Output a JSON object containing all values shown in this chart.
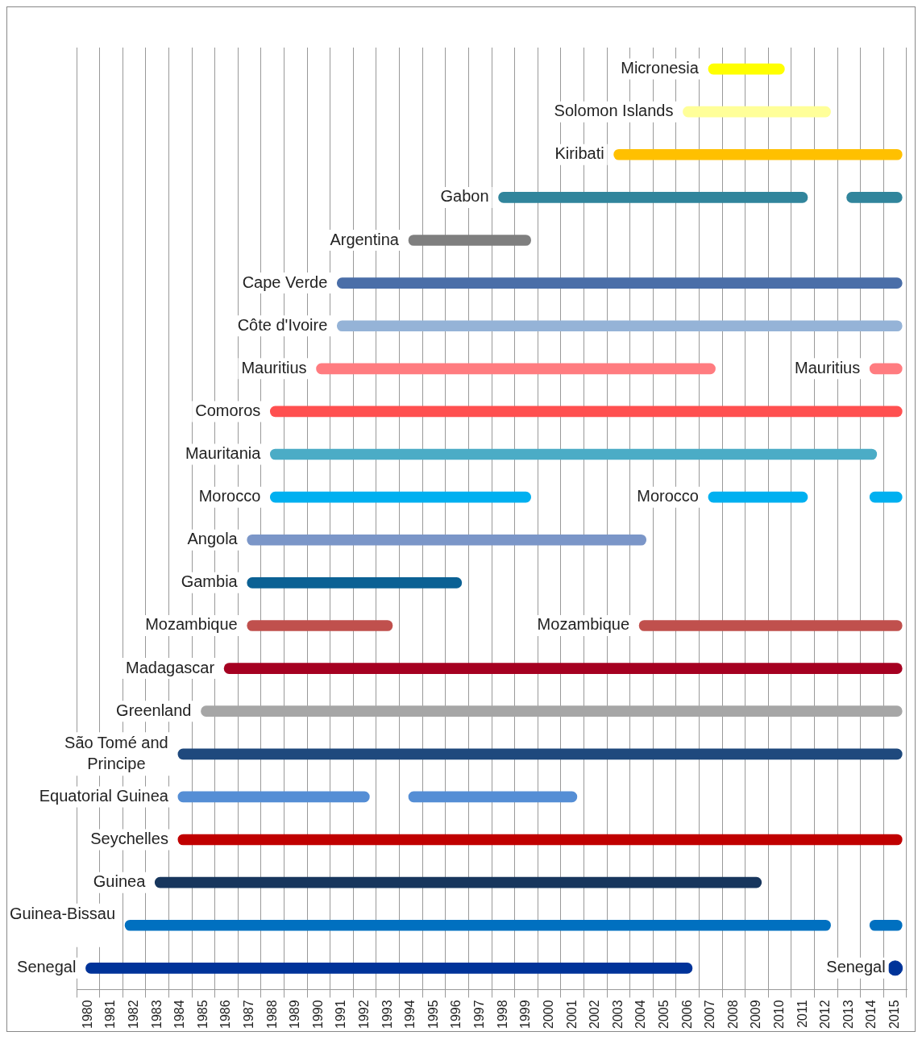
{
  "chart_data": {
    "type": "bar",
    "orientation": "horizontal",
    "categories": [
      "Micronesia",
      "Solomon Islands",
      "Kiribati",
      "Gabon",
      "Argentina",
      "Cape Verde",
      "Côte d'Ivoire",
      "Mauritius",
      "Comoros",
      "Mauritania",
      "Morocco",
      "Angola",
      "Gambia",
      "Mozambique",
      "Madagascar",
      "Greenland",
      "São Tomé and Principe",
      "Equatorial Guinea",
      "Seychelles",
      "Guinea",
      "Guinea-Bissau",
      "Senegal"
    ],
    "series": [
      {
        "base": [
          2007.4,
          2006.3,
          2003.3,
          1998.3,
          1994.4,
          1991.3,
          1991.3,
          1990.4,
          1988.4,
          1988.4,
          1988.4,
          1987.4,
          1987.4,
          1987.4,
          1986.4,
          1985.4,
          1984.4,
          1984.4,
          1984.4,
          1983.4,
          1982.1,
          1980.4
        ],
        "values": [
          3.3,
          6.4,
          12.5,
          13.4,
          5.3,
          24.5,
          24.5,
          17.3,
          27.4,
          26.3,
          11.3,
          17.3,
          9.3,
          6.3,
          29.4,
          30.4,
          31.4,
          8.3,
          31.4,
          26.3,
          30.6,
          26.3
        ],
        "colors": [
          "#ffff00",
          "#ffff99",
          "#ffc000",
          "#31859c",
          "#7f7f7f",
          "#4a6ea8",
          "#95b3d7",
          "#ff7c80",
          "#ff5050",
          "#4bacc6",
          "#00b0f0",
          "#7b96c8",
          "#0b6194",
          "#c0504d",
          "#a50021",
          "#a6a6a6",
          "#1f497d",
          "#558ed5",
          "#c00000",
          "#17365d",
          "#0070c0",
          "#003399"
        ]
      },
      {
        "base": [
          null,
          null,
          null,
          2013.4,
          null,
          null,
          null,
          2014.4,
          null,
          null,
          2007.4,
          null,
          null,
          2004.4,
          null,
          null,
          null,
          1994.4,
          null,
          null,
          2014.4,
          null
        ],
        "values": [
          null,
          null,
          null,
          2.4,
          null,
          null,
          null,
          1.4,
          null,
          null,
          4.3,
          null,
          null,
          11.4,
          null,
          null,
          null,
          7.3,
          null,
          null,
          1.4,
          null
        ],
        "colors": [
          null,
          null,
          null,
          "#31859c",
          null,
          null,
          null,
          "#ff7c80",
          null,
          null,
          "#00b0f0",
          null,
          null,
          "#c0504d",
          null,
          null,
          null,
          "#558ed5",
          null,
          null,
          "#0070c0",
          null
        ]
      },
      {
        "base": [
          null,
          null,
          null,
          null,
          null,
          null,
          null,
          null,
          null,
          null,
          2014.4,
          null,
          null,
          null,
          null,
          null,
          null,
          null,
          null,
          null,
          null,
          null
        ],
        "values": [
          null,
          null,
          null,
          null,
          null,
          null,
          null,
          null,
          null,
          null,
          1.4,
          null,
          null,
          null,
          null,
          null,
          null,
          null,
          null,
          null,
          null,
          null
        ],
        "colors": [
          null,
          null,
          null,
          null,
          null,
          null,
          null,
          null,
          null,
          null,
          "#00b0f0",
          null,
          null,
          null,
          null,
          null,
          null,
          null,
          null,
          null,
          null,
          null
        ]
      },
      {
        "type": "scatter",
        "values": [
          null,
          null,
          null,
          null,
          null,
          null,
          null,
          null,
          null,
          null,
          null,
          null,
          null,
          null,
          null,
          null,
          null,
          null,
          null,
          null,
          null,
          2015.5
        ],
        "color": "#003399",
        "marker": "circle"
      }
    ],
    "annotations": [
      {
        "text": "Mauritius",
        "x": 2014.4,
        "y": "Mauritius"
      },
      {
        "text": "Morocco",
        "x": 2007.4,
        "y": "Morocco"
      },
      {
        "text": "Mozambique",
        "x": 2004.4,
        "y": "Mozambique"
      },
      {
        "text": "Senegal",
        "x": 2015.5,
        "y": "Senegal"
      }
    ],
    "xlim": [
      1980,
      2016
    ],
    "xticks": [
      {
        "value": 1980.5,
        "label": "1980"
      },
      {
        "value": 1981.5,
        "label": "1981"
      },
      {
        "value": 1982.5,
        "label": "1982"
      },
      {
        "value": 1983.5,
        "label": "1983"
      },
      {
        "value": 1984.5,
        "label": "1984"
      },
      {
        "value": 1985.5,
        "label": "1985"
      },
      {
        "value": 1986.5,
        "label": "1986"
      },
      {
        "value": 1987.5,
        "label": "1987"
      },
      {
        "value": 1988.5,
        "label": "1988"
      },
      {
        "value": 1989.5,
        "label": "1989"
      },
      {
        "value": 1990.5,
        "label": "1990"
      },
      {
        "value": 1991.5,
        "label": "1991"
      },
      {
        "value": 1992.5,
        "label": "1992"
      },
      {
        "value": 1993.5,
        "label": "1993"
      },
      {
        "value": 1994.5,
        "label": "1994"
      },
      {
        "value": 1995.5,
        "label": "1995"
      },
      {
        "value": 1996.5,
        "label": "1996"
      },
      {
        "value": 1997.5,
        "label": "1997"
      },
      {
        "value": 1998.5,
        "label": "1998"
      },
      {
        "value": 1999.5,
        "label": "1999"
      },
      {
        "value": 2000.5,
        "label": "2000"
      },
      {
        "value": 2001.5,
        "label": "2001"
      },
      {
        "value": 2002.5,
        "label": "2002"
      },
      {
        "value": 2003.5,
        "label": "2003"
      },
      {
        "value": 2004.5,
        "label": "2004"
      },
      {
        "value": 2005.5,
        "label": "2005"
      },
      {
        "value": 2006.5,
        "label": "2006"
      },
      {
        "value": 2007.5,
        "label": "2007"
      },
      {
        "value": 2008.5,
        "label": "2008"
      },
      {
        "value": 2009.5,
        "label": "2009"
      },
      {
        "value": 2010.5,
        "label": "2010"
      },
      {
        "value": 2011.5,
        "label": "2011"
      },
      {
        "value": 2012.5,
        "label": "2012"
      },
      {
        "value": 2013.5,
        "label": "2013"
      },
      {
        "value": 2014.5,
        "label": "2014"
      },
      {
        "value": 2015.5,
        "label": "2015"
      }
    ],
    "grid": "x"
  }
}
